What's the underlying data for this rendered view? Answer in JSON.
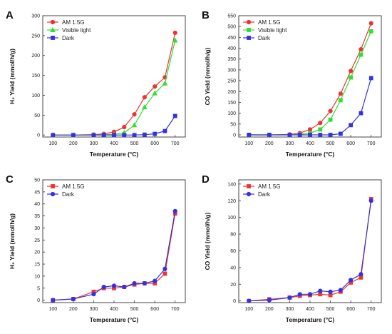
{
  "colors": {
    "red": "#ee3333",
    "green": "#33dd33",
    "blue": "#3333dd",
    "axis": "#333333"
  },
  "chart_data": [
    {
      "id": "A",
      "type": "line",
      "panel_label": "A",
      "xlabel": "Temperature (°C)",
      "ylabel": "H₂ Yield (mmol/h/g)",
      "xlim": [
        50,
        750
      ],
      "ylim": [
        -5,
        300
      ],
      "xticks": [
        "100",
        "200",
        "300",
        "400",
        "500",
        "600",
        "700"
      ],
      "yticks": [
        "0",
        "50",
        "100",
        "150",
        "200",
        "250",
        "300"
      ],
      "legend_position": "top-left",
      "series": [
        {
          "name": "AM 1.5G",
          "color": "#ee3333",
          "marker": "circle",
          "x": [
            100,
            200,
            300,
            350,
            400,
            450,
            500,
            550,
            600,
            650,
            700
          ],
          "y": [
            0,
            0,
            1,
            3,
            8,
            20,
            52,
            95,
            122,
            145,
            257
          ]
        },
        {
          "name": "Visible light",
          "color": "#33dd33",
          "marker": "triangle",
          "x": [
            100,
            200,
            300,
            350,
            400,
            450,
            500,
            550,
            600,
            650,
            700
          ],
          "y": [
            0,
            0,
            0,
            1,
            2,
            6,
            25,
            70,
            105,
            130,
            238
          ]
        },
        {
          "name": "Dark",
          "color": "#3333dd",
          "marker": "square",
          "x": [
            100,
            200,
            300,
            350,
            400,
            450,
            500,
            550,
            600,
            650,
            700
          ],
          "y": [
            0,
            0,
            0,
            0,
            0,
            0,
            0,
            1,
            3,
            10,
            48
          ]
        }
      ]
    },
    {
      "id": "B",
      "type": "line",
      "panel_label": "B",
      "xlabel": "Temperature (°C)",
      "ylabel": "CO Yield (mmol/h/g)",
      "xlim": [
        50,
        750
      ],
      "ylim": [
        -10,
        550
      ],
      "xticks": [
        "100",
        "200",
        "300",
        "400",
        "500",
        "600",
        "700"
      ],
      "yticks": [
        "0",
        "50",
        "100",
        "150",
        "200",
        "250",
        "300",
        "350",
        "400",
        "450",
        "500",
        "550"
      ],
      "legend_position": "top-left",
      "series": [
        {
          "name": "AM 1.5G",
          "color": "#ee3333",
          "marker": "circle",
          "x": [
            100,
            200,
            300,
            350,
            400,
            450,
            500,
            550,
            600,
            650,
            700
          ],
          "y": [
            0,
            0,
            2,
            8,
            25,
            55,
            110,
            190,
            295,
            395,
            515
          ]
        },
        {
          "name": "Visible light",
          "color": "#33dd33",
          "marker": "square",
          "x": [
            100,
            200,
            300,
            350,
            400,
            450,
            500,
            550,
            600,
            650,
            700
          ],
          "y": [
            0,
            0,
            0,
            2,
            8,
            25,
            70,
            160,
            265,
            370,
            478
          ]
        },
        {
          "name": "Dark",
          "color": "#3333dd",
          "marker": "square",
          "x": [
            100,
            200,
            300,
            350,
            400,
            450,
            500,
            550,
            600,
            650,
            700
          ],
          "y": [
            0,
            0,
            0,
            0,
            0,
            0,
            0,
            5,
            45,
            100,
            262
          ]
        }
      ]
    },
    {
      "id": "C",
      "type": "line",
      "panel_label": "C",
      "xlabel": "Temperature (°C)",
      "ylabel": "H₂ Yield (mmol/h/g)",
      "xlim": [
        50,
        750
      ],
      "ylim": [
        -1,
        50
      ],
      "xticks": [
        "100",
        "200",
        "300",
        "400",
        "500",
        "600",
        "700"
      ],
      "yticks": [
        "0",
        "5",
        "10",
        "15",
        "20",
        "25",
        "30",
        "35",
        "40",
        "45",
        "50"
      ],
      "legend_position": "top-left",
      "series": [
        {
          "name": "AM 1.5G",
          "color": "#ee3333",
          "marker": "square",
          "x": [
            100,
            200,
            300,
            350,
            400,
            450,
            500,
            550,
            600,
            650,
            700
          ],
          "y": [
            0,
            0.5,
            3.5,
            5,
            5,
            5.5,
            6.5,
            7,
            7,
            11,
            36
          ]
        },
        {
          "name": "Dark",
          "color": "#3333dd",
          "marker": "circle",
          "x": [
            100,
            200,
            300,
            350,
            400,
            450,
            500,
            550,
            600,
            650,
            700
          ],
          "y": [
            0,
            0.5,
            2.5,
            5.5,
            6,
            5.5,
            7,
            7,
            8,
            13,
            37
          ]
        }
      ]
    },
    {
      "id": "D",
      "type": "line",
      "panel_label": "D",
      "xlabel": "Temperature (°C)",
      "ylabel": "CO Yield (mmol/h/g)",
      "xlim": [
        50,
        750
      ],
      "ylim": [
        -2,
        145
      ],
      "xticks": [
        "100",
        "200",
        "300",
        "400",
        "500",
        "600",
        "700"
      ],
      "yticks": [
        "0",
        "20",
        "40",
        "60",
        "80",
        "100",
        "120",
        "140"
      ],
      "legend_position": "top-left",
      "series": [
        {
          "name": "AM 1.5G",
          "color": "#ee3333",
          "marker": "square",
          "x": [
            100,
            200,
            300,
            350,
            400,
            450,
            500,
            550,
            600,
            650,
            700
          ],
          "y": [
            0,
            2,
            4,
            6,
            7,
            8,
            7,
            11,
            22,
            28,
            122
          ]
        },
        {
          "name": "Dark",
          "color": "#3333dd",
          "marker": "circle",
          "x": [
            100,
            200,
            300,
            350,
            400,
            450,
            500,
            550,
            600,
            650,
            700
          ],
          "y": [
            0,
            1,
            4,
            8,
            8,
            12,
            11,
            13,
            25,
            32,
            120
          ]
        }
      ]
    }
  ]
}
